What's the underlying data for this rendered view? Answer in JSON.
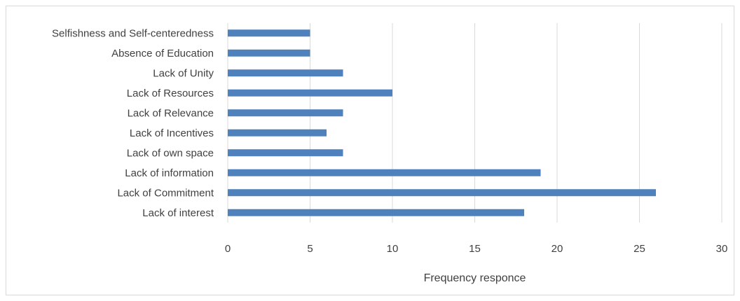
{
  "chart_data": {
    "type": "bar",
    "orientation": "horizontal",
    "categories": [
      "Selfishness and Self-centeredness",
      "Absence of Education",
      "Lack of Unity",
      "Lack of Resources",
      "Lack of Relevance",
      "Lack of Incentives",
      "Lack of own space",
      "Lack of information",
      "Lack of Commitment",
      "Lack of interest"
    ],
    "values": [
      5,
      5,
      7,
      10,
      7,
      6,
      7,
      19,
      26,
      18
    ],
    "title": "",
    "xlabel": "Frequency responce",
    "ylabel": "",
    "xlim": [
      0,
      30
    ],
    "xticks": [
      "0",
      "5",
      "10",
      "15",
      "20",
      "25",
      "30"
    ],
    "grid": true,
    "legend": "none",
    "bar_color": "#4f81bd"
  }
}
